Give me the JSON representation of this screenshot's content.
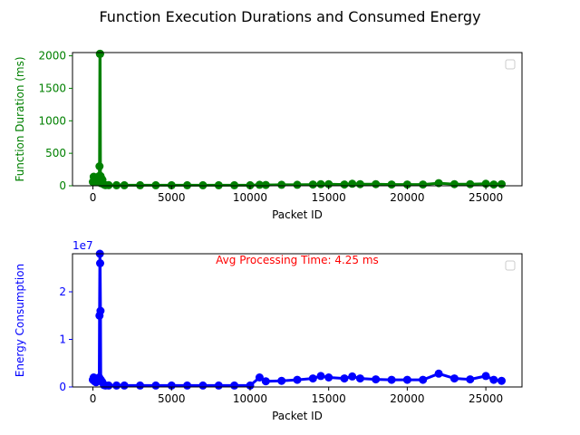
{
  "figure": {
    "suptitle": "Function Execution Durations and Consumed Energy"
  },
  "chart_data": [
    {
      "type": "line",
      "xlabel": "Packet ID",
      "ylabel": "Function Duration (ms)",
      "ylabel_color": "#008000",
      "series_color": "#008000",
      "markers": true,
      "xlim": [
        -1300,
        27300
      ],
      "ylim": [
        0,
        2050
      ],
      "xticks": [
        0,
        5000,
        10000,
        15000,
        20000,
        25000
      ],
      "yticks": [
        0,
        500,
        1000,
        1500,
        2000
      ],
      "legend": "top-right (empty)",
      "series": [
        {
          "x": [
            0,
            50,
            100,
            150,
            200,
            250,
            300,
            350,
            400,
            420,
            440,
            460,
            480,
            500,
            550,
            600,
            700,
            800,
            1000,
            1500,
            2000,
            3000,
            4000,
            5000,
            6000,
            7000,
            8000,
            9000,
            10000,
            10600,
            11000,
            12000,
            13000,
            14000,
            14500,
            15000,
            16000,
            16500,
            17000,
            18000,
            19000,
            20000,
            21000,
            22000,
            23000,
            24000,
            25000,
            25500,
            26000
          ],
          "y": [
            60,
            140,
            80,
            120,
            60,
            100,
            90,
            120,
            150,
            300,
            2030,
            2030,
            150,
            40,
            110,
            90,
            20,
            10,
            10,
            8,
            8,
            8,
            8,
            8,
            8,
            8,
            8,
            8,
            8,
            15,
            12,
            15,
            15,
            20,
            25,
            25,
            20,
            30,
            25,
            25,
            20,
            20,
            20,
            40,
            25,
            25,
            30,
            20,
            25
          ]
        }
      ]
    },
    {
      "type": "line",
      "xlabel": "Packet ID",
      "ylabel": "Energy Consumption",
      "ylabel_color": "#0000ff",
      "series_color": "#0000ff",
      "markers": true,
      "xlim": [
        -1300,
        27300
      ],
      "ylim": [
        0,
        28000000
      ],
      "yscale_label": "1e7",
      "xticks": [
        0,
        5000,
        10000,
        15000,
        20000,
        25000
      ],
      "yticks": [
        0,
        10000000,
        20000000
      ],
      "ytick_labels": [
        "0",
        "1",
        "2"
      ],
      "annotation": "Avg Processing Time: 4.25 ms",
      "annotation_color": "#ff0000",
      "legend": "top-right (empty)",
      "series": [
        {
          "x": [
            0,
            50,
            100,
            150,
            200,
            250,
            300,
            350,
            400,
            420,
            440,
            460,
            480,
            500,
            550,
            600,
            700,
            800,
            1000,
            1500,
            2000,
            3000,
            4000,
            5000,
            6000,
            7000,
            8000,
            9000,
            10000,
            10600,
            11000,
            12000,
            13000,
            14000,
            14500,
            15000,
            16000,
            16500,
            17000,
            18000,
            19000,
            20000,
            21000,
            22000,
            23000,
            24000,
            25000,
            25500,
            26000
          ],
          "y": [
            1500000,
            2000000,
            1200000,
            1800000,
            1000000,
            1500000,
            1300000,
            1800000,
            2000000,
            15000000,
            28000000,
            26000000,
            16000000,
            1500000,
            1200000,
            1000000,
            400000,
            300000,
            300000,
            300000,
            300000,
            300000,
            300000,
            300000,
            300000,
            300000,
            300000,
            300000,
            300000,
            2000000,
            1200000,
            1300000,
            1500000,
            1800000,
            2300000,
            2000000,
            1800000,
            2200000,
            1800000,
            1600000,
            1500000,
            1500000,
            1500000,
            2800000,
            1800000,
            1600000,
            2300000,
            1500000,
            1300000
          ]
        }
      ]
    }
  ]
}
